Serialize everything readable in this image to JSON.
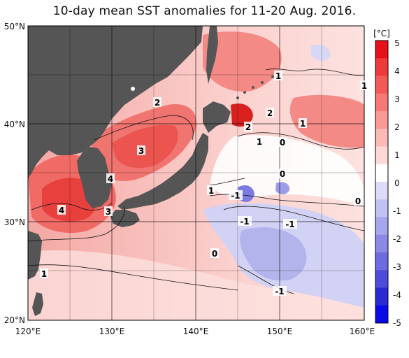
{
  "title": "10-day mean SST anomalies for 11-20 Aug. 2016.",
  "map": {
    "lon_range": [
      120,
      160
    ],
    "lat_range": [
      20,
      50
    ],
    "lon_ticks": [
      "120°E",
      "130°E",
      "140°E",
      "150°E",
      "160°E"
    ],
    "lat_ticks": [
      "50°N",
      "40°N",
      "30°N",
      "20°N"
    ],
    "land_color": "#555555",
    "grid": true
  },
  "colorbar": {
    "unit": "[°C]",
    "labels": [
      "5",
      "4",
      "3",
      "2",
      "1",
      "0",
      "-1",
      "-2",
      "-3",
      "-4",
      "-5"
    ],
    "colors": [
      "#e8101a",
      "#ee3a3a",
      "#f25a57",
      "#f57a75",
      "#f89a95",
      "#fbbab5",
      "#fdd9d6",
      "#ffffff",
      "#dcdcf8",
      "#c2c2f2",
      "#a6a6ec",
      "#8a8ae6",
      "#6c6ce0",
      "#4c4cd8",
      "#2a2ad0",
      "#0a0ae6"
    ]
  },
  "contour_labels": [
    "1",
    "2",
    "3",
    "4",
    "4",
    "3",
    "1",
    "2",
    "2",
    "1",
    "1",
    "0",
    "0",
    "1",
    "-1",
    "0",
    "-1",
    "-1",
    "0",
    "-1",
    "1"
  ]
}
